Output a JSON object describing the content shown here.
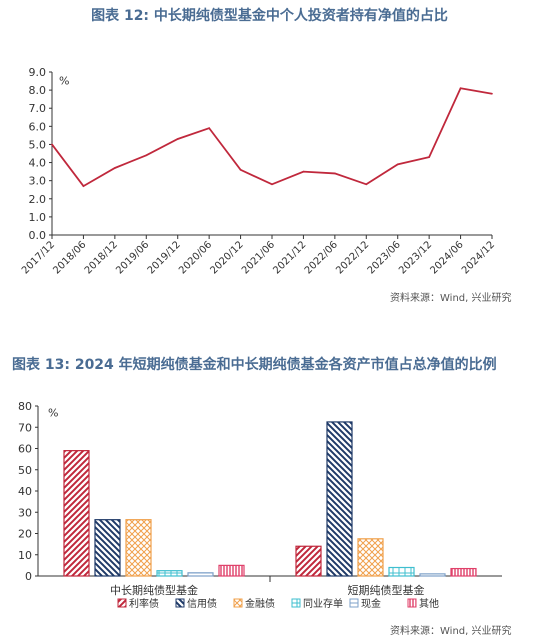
{
  "chart1": {
    "title": "图表 12: 中长期纯债型基金中个人投资者持有净值的占比",
    "source": "资料来源：Wind, 兴业研究",
    "chart_data": {
      "type": "line",
      "unit_label": "%",
      "x": [
        "2017/12",
        "2018/06",
        "2018/12",
        "2019/06",
        "2019/12",
        "2020/06",
        "2020/12",
        "2021/06",
        "2021/12",
        "2022/06",
        "2022/12",
        "2023/06",
        "2023/12",
        "2024/06",
        "2024/12"
      ],
      "series": [
        {
          "values": [
            5.0,
            2.7,
            3.7,
            4.4,
            5.3,
            5.9,
            3.6,
            2.8,
            3.5,
            3.4,
            2.8,
            3.9,
            4.3,
            8.1,
            7.8
          ]
        }
      ],
      "ylim": [
        0,
        9
      ],
      "yticks": [
        "0.0",
        "1.0",
        "2.0",
        "3.0",
        "4.0",
        "5.0",
        "6.0",
        "7.0",
        "8.0",
        "9.0"
      ],
      "line_color": "#c0283c",
      "grid": false
    }
  },
  "chart2": {
    "title": "图表 13: 2024 年短期纯债基金和中长期纯债基金各资产市值占总净值的比例",
    "source": "资料来源：Wind, 兴业研究",
    "chart_data": {
      "type": "bar",
      "unit_label": "%",
      "categories": [
        "中长期纯债型基金",
        "短期纯债型基金"
      ],
      "series": [
        {
          "name": "利率债",
          "values": [
            59,
            14
          ],
          "color": "#c0283c",
          "pattern": "diag-right"
        },
        {
          "name": "信用债",
          "values": [
            26.5,
            72.5
          ],
          "color": "#1f3a68",
          "pattern": "diag-left"
        },
        {
          "name": "金融债",
          "values": [
            26.5,
            17.5
          ],
          "color": "#f0a04b",
          "pattern": "cross"
        },
        {
          "name": "同业存单",
          "values": [
            2.5,
            4.0
          ],
          "color": "#3fbfcf",
          "pattern": "grid"
        },
        {
          "name": "现金",
          "values": [
            1.5,
            1.0
          ],
          "color": "#7da0c8",
          "pattern": "hline"
        },
        {
          "name": "其他",
          "values": [
            5.0,
            3.5
          ],
          "color": "#e0406a",
          "pattern": "vline"
        }
      ],
      "ylim": [
        0,
        80
      ],
      "yticks": [
        "0",
        "10",
        "20",
        "30",
        "40",
        "50",
        "60",
        "70",
        "80"
      ],
      "legend_position": "bottom",
      "grid": false
    }
  }
}
